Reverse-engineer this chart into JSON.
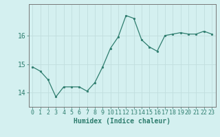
{
  "x": [
    0,
    1,
    2,
    3,
    4,
    5,
    6,
    7,
    8,
    9,
    10,
    11,
    12,
    13,
    14,
    15,
    16,
    17,
    18,
    19,
    20,
    21,
    22,
    23
  ],
  "y": [
    14.9,
    14.75,
    14.45,
    13.85,
    14.2,
    14.2,
    14.2,
    14.05,
    14.35,
    14.9,
    15.55,
    15.95,
    16.7,
    16.6,
    15.85,
    15.6,
    15.45,
    16.0,
    16.05,
    16.1,
    16.05,
    16.05,
    16.15,
    16.05
  ],
  "line_color": "#2e7d6e",
  "marker": "o",
  "marker_size": 1.8,
  "bg_color": "#d4f0f0",
  "grid_color": "#c0dede",
  "axis_color": "#777777",
  "xlabel": "Humidex (Indice chaleur)",
  "xlabel_fontsize": 7,
  "tick_fontsize": 6,
  "ytick_fontsize": 7,
  "yticks": [
    14,
    15,
    16
  ],
  "ylim": [
    13.5,
    17.1
  ],
  "xlim": [
    -0.5,
    23.5
  ],
  "title": ""
}
